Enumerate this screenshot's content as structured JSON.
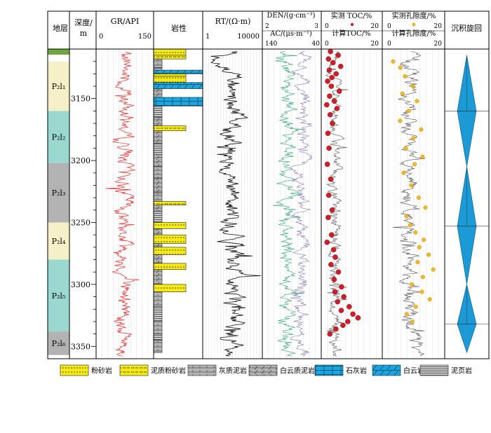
{
  "headers": {
    "strata": "地层",
    "depth_line1": "深度/",
    "depth_line2": "m",
    "gr_title": "GR/API",
    "gr_min": "0",
    "gr_max": "150",
    "lith_title": "岩性",
    "rt_title": "RT/(Ω·m)",
    "rt_min": "1",
    "rt_max": "10000",
    "den_title": "DEN/(g·cm⁻³)",
    "den_min": "2",
    "den_max": "3",
    "ac_title": "AC/(μs·m⁻¹)",
    "ac_min": "140",
    "ac_max": "40",
    "toc_measured": "实测 TOC/%",
    "toc_calc": "计算TOC/%",
    "toc_min": "0",
    "toc_max": "20",
    "toc_min2": "0",
    "toc_max2": "20",
    "por_measured": "实测孔隙度/%",
    "por_calc": "计算孔隙度/%",
    "por_min": "0",
    "por_max": "20",
    "por_min2": "0",
    "por_max2": "20",
    "cycle_title": "沉积旋回"
  },
  "strata": [
    {
      "sub": "1",
      "label": "P₂l₁",
      "top": 3120,
      "bottom": 3160
    },
    {
      "sub": "2",
      "label": "P₂l₂",
      "top": 3160,
      "bottom": 3202
    },
    {
      "sub": "3",
      "label": "P₂l₃",
      "top": 3202,
      "bottom": 3250
    },
    {
      "sub": "4",
      "label": "P₂l₄",
      "top": 3250,
      "bottom": 3280
    },
    {
      "sub": "5",
      "label": "P₂l₅",
      "top": 3280,
      "bottom": 3338
    },
    {
      "sub": "6",
      "label": "P₂l₆",
      "top": 3338,
      "bottom": 3357
    }
  ],
  "legend": [
    {
      "key": "siltstone",
      "label": "粉砂岩"
    },
    {
      "key": "muddy_siltstone",
      "label": "泥质粉砂岩"
    },
    {
      "key": "calc_mudstone",
      "label": "灰质泥岩"
    },
    {
      "key": "dolo_mudstone",
      "label": "白云质泥岩"
    },
    {
      "key": "limestone",
      "label": "石灰岩"
    },
    {
      "key": "dolomite",
      "label": "白云岩"
    },
    {
      "key": "shale",
      "label": "泥页岩"
    }
  ],
  "colors": {
    "yellow": "#f5ea14",
    "blue": "#1aa7e1",
    "green": "#6fa83f",
    "strata_a": "#f6f0c8",
    "strata_b": "#9ad8d0",
    "strata_c": "#b3b3b3",
    "gr": "#e03030",
    "den": "#2fa374",
    "ac": "#8a7ab8",
    "toc_dot": "#cc1f2a",
    "por_dot": "#f5b820",
    "cycle": "#1b9ad6"
  },
  "chart_data": {
    "type": "well_log_composite",
    "depth_range": [
      3110,
      3360
    ],
    "depth_ticks": [
      3150,
      3200,
      3250,
      3300,
      3350
    ],
    "tracks": [
      {
        "name": "GR",
        "unit": "API",
        "range": [
          0,
          150
        ],
        "scale": "linear"
      },
      {
        "name": "RT",
        "unit": "Ω·m",
        "range": [
          1,
          10000
        ],
        "scale": "log"
      },
      {
        "name": "DEN",
        "unit": "g·cm⁻³",
        "range": [
          2,
          3
        ],
        "scale": "linear"
      },
      {
        "name": "AC",
        "unit": "μs·m⁻¹",
        "range": [
          140,
          40
        ],
        "scale": "linear"
      },
      {
        "name": "TOC",
        "unit": "%",
        "range": [
          0,
          20
        ],
        "series": [
          "measured",
          "calculated"
        ]
      },
      {
        "name": "Porosity",
        "unit": "%",
        "range": [
          0,
          20
        ],
        "series": [
          "measured",
          "calculated"
        ]
      }
    ],
    "lithology": [
      {
        "top": 3110,
        "bottom": 3115,
        "type": "siltstone"
      },
      {
        "top": 3115,
        "bottom": 3118,
        "type": "muddy_siltstone"
      },
      {
        "top": 3118,
        "bottom": 3125,
        "type": "calc_mudstone"
      },
      {
        "top": 3125,
        "bottom": 3127,
        "type": "shale"
      },
      {
        "top": 3127,
        "bottom": 3130,
        "type": "dolomite"
      },
      {
        "top": 3130,
        "bottom": 3132,
        "type": "muddy_siltstone"
      },
      {
        "top": 3132,
        "bottom": 3137,
        "type": "siltstone"
      },
      {
        "top": 3137,
        "bottom": 3142,
        "type": "dolomite"
      },
      {
        "top": 3142,
        "bottom": 3149,
        "type": "dolo_mudstone"
      },
      {
        "top": 3149,
        "bottom": 3156,
        "type": "limestone"
      },
      {
        "top": 3156,
        "bottom": 3165,
        "type": "shale"
      },
      {
        "top": 3165,
        "bottom": 3172,
        "type": "dolo_mudstone"
      },
      {
        "top": 3172,
        "bottom": 3176,
        "type": "muddy_siltstone"
      },
      {
        "top": 3176,
        "bottom": 3186,
        "type": "dolo_mudstone"
      },
      {
        "top": 3186,
        "bottom": 3195,
        "type": "shale"
      },
      {
        "top": 3195,
        "bottom": 3205,
        "type": "dolo_mudstone"
      },
      {
        "top": 3205,
        "bottom": 3214,
        "type": "calc_mudstone"
      },
      {
        "top": 3214,
        "bottom": 3226,
        "type": "dolo_mudstone"
      },
      {
        "top": 3226,
        "bottom": 3233,
        "type": "calc_mudstone"
      },
      {
        "top": 3233,
        "bottom": 3236,
        "type": "muddy_siltstone"
      },
      {
        "top": 3236,
        "bottom": 3241,
        "type": "dolo_mudstone"
      },
      {
        "top": 3241,
        "bottom": 3250,
        "type": "shale"
      },
      {
        "top": 3250,
        "bottom": 3255,
        "type": "siltstone"
      },
      {
        "top": 3255,
        "bottom": 3260,
        "type": "dolo_mudstone"
      },
      {
        "top": 3260,
        "bottom": 3267,
        "type": "siltstone"
      },
      {
        "top": 3267,
        "bottom": 3270,
        "type": "dolo_mudstone"
      },
      {
        "top": 3270,
        "bottom": 3276,
        "type": "siltstone"
      },
      {
        "top": 3276,
        "bottom": 3283,
        "type": "dolo_mudstone"
      },
      {
        "top": 3283,
        "bottom": 3288,
        "type": "siltstone"
      },
      {
        "top": 3288,
        "bottom": 3300,
        "type": "dolo_mudstone"
      },
      {
        "top": 3300,
        "bottom": 3306,
        "type": "siltstone"
      },
      {
        "top": 3306,
        "bottom": 3318,
        "type": "calc_mudstone"
      },
      {
        "top": 3318,
        "bottom": 3330,
        "type": "shale"
      },
      {
        "top": 3330,
        "bottom": 3340,
        "type": "calc_mudstone"
      },
      {
        "top": 3340,
        "bottom": 3345,
        "type": "shale"
      },
      {
        "top": 3345,
        "bottom": 3355,
        "type": "calc_mudstone"
      }
    ],
    "cycles": [
      {
        "top": 3115,
        "apex": 3160,
        "bottom": 3205
      },
      {
        "top": 3205,
        "apex": 3253,
        "bottom": 3300
      },
      {
        "top": 3300,
        "apex": 3332,
        "bottom": 3355
      }
    ],
    "toc_measured_points": [
      [
        3112,
        2.5
      ],
      [
        3115,
        5.2
      ],
      [
        3118,
        1.8
      ],
      [
        3121,
        3.4
      ],
      [
        3124,
        6.1
      ],
      [
        3127,
        2.1
      ],
      [
        3130,
        4.5
      ],
      [
        3133,
        3.0
      ],
      [
        3136,
        1.5
      ],
      [
        3140,
        2.8
      ],
      [
        3144,
        5.6
      ],
      [
        3148,
        2.2
      ],
      [
        3152,
        3.9
      ],
      [
        3155,
        1.2
      ],
      [
        3158,
        4.8
      ],
      [
        3163,
        2.4
      ],
      [
        3170,
        3.2
      ],
      [
        3178,
        1.6
      ],
      [
        3190,
        2.0
      ],
      [
        3203,
        1.4
      ],
      [
        3215,
        2.6
      ],
      [
        3228,
        1.9
      ],
      [
        3240,
        3.1
      ],
      [
        3246,
        1.7
      ],
      [
        3260,
        2.9
      ],
      [
        3266,
        1.3
      ],
      [
        3272,
        3.6
      ],
      [
        3278,
        4.2
      ],
      [
        3284,
        2.7
      ],
      [
        3290,
        5.3
      ],
      [
        3296,
        3.8
      ],
      [
        3302,
        6.4
      ],
      [
        3306,
        4.1
      ],
      [
        3310,
        7.2
      ],
      [
        3314,
        5.0
      ],
      [
        3318,
        9.1
      ],
      [
        3321,
        6.3
      ],
      [
        3324,
        10.4
      ],
      [
        3327,
        12.2
      ],
      [
        3330,
        8.6
      ],
      [
        3333,
        6.9
      ],
      [
        3336,
        4.4
      ],
      [
        3340,
        2.3
      ]
    ],
    "porosity_measured_points": [
      [
        3120,
        3.0
      ],
      [
        3125,
        5.5
      ],
      [
        3132,
        7.1
      ],
      [
        3140,
        9.8
      ],
      [
        3146,
        6.2
      ],
      [
        3152,
        11.2
      ],
      [
        3160,
        8.3
      ],
      [
        3168,
        5.4
      ],
      [
        3175,
        12.6
      ],
      [
        3182,
        9.9
      ],
      [
        3190,
        7.3
      ],
      [
        3197,
        13.1
      ],
      [
        3203,
        10.4
      ],
      [
        3210,
        6.6
      ],
      [
        3220,
        9.2
      ],
      [
        3230,
        11.8
      ],
      [
        3238,
        14.1
      ],
      [
        3245,
        7.6
      ],
      [
        3252,
        8.9
      ],
      [
        3258,
        10.7
      ],
      [
        3264,
        13.5
      ],
      [
        3270,
        12.0
      ],
      [
        3276,
        15.2
      ],
      [
        3282,
        11.4
      ],
      [
        3288,
        16.8
      ],
      [
        3294,
        13.2
      ],
      [
        3300,
        9.4
      ],
      [
        3306,
        12.9
      ],
      [
        3312,
        15.6
      ],
      [
        3318,
        10.8
      ],
      [
        3324,
        7.7
      ],
      [
        3330,
        9.6
      ]
    ]
  }
}
